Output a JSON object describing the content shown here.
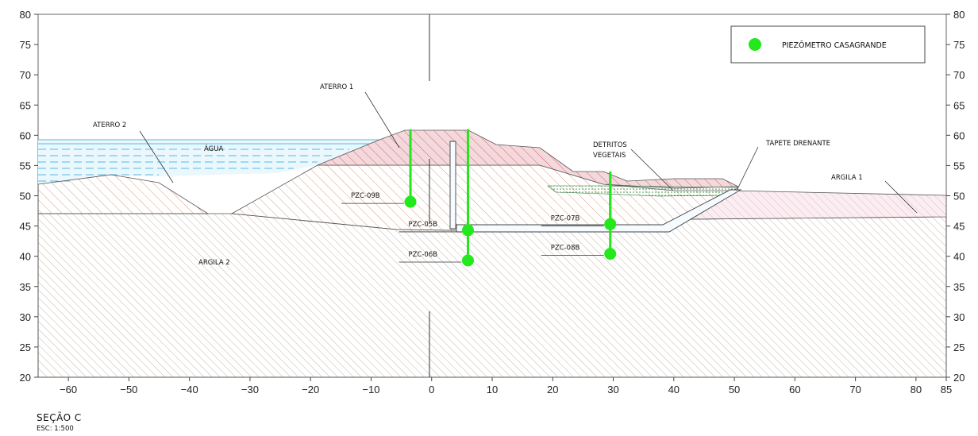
{
  "caption": {
    "section": "SEÇÃO C",
    "scale": "ESC: 1:500"
  },
  "legend": {
    "label": "PIEZÔMETRO CASAGRANDE",
    "marker_color": "#22e81c"
  },
  "axes": {
    "x_ticks": [
      -60,
      -50,
      -40,
      -30,
      -20,
      -10,
      0,
      10,
      20,
      30,
      40,
      50,
      60,
      70,
      80,
      85
    ],
    "y_ticks": [
      20,
      25,
      30,
      35,
      40,
      45,
      50,
      55,
      60,
      65,
      70,
      75,
      80
    ],
    "x_range": [
      -65,
      85
    ],
    "y_range": [
      20,
      80
    ]
  },
  "colors": {
    "aterro_hatch": "#d9a082",
    "aterro1_fill": "#f3d8dc",
    "aterro1_hatch": "#d56870",
    "argila1_hatch": "#e8b8c6",
    "argila2_hatch": "#c5b6a6",
    "water_line": "#55b8e8",
    "water_fill": "#eaf7fd",
    "outline": "#4a4a4a",
    "detritos": "#2a9a3a",
    "piezometer": "#22e81c"
  },
  "labels": {
    "aterro1": "ATERRO 1",
    "aterro2": "ATERRO 2",
    "agua": "ÁGUA",
    "argila1": "ARGILA 1",
    "argila2": "ARGILA 2",
    "detritos_line1": "DETRITOS",
    "detritos_line2": "VEGETAIS",
    "tapete": "TAPETE DRENANTE"
  },
  "piezometers": [
    {
      "id": "PZC-09B",
      "x": -3.5,
      "top": 61,
      "tip": 49
    },
    {
      "id": "PZC-05B",
      "x": 6,
      "top": 61,
      "tip": 44.3
    },
    {
      "id": "PZC-06B",
      "x": 6,
      "top": 61,
      "tip": 39.3
    },
    {
      "id": "PZC-07B",
      "x": 29.5,
      "top": 54,
      "tip": 45.3
    },
    {
      "id": "PZC-08B",
      "x": 29.5,
      "top": 54,
      "tip": 40.4
    }
  ]
}
